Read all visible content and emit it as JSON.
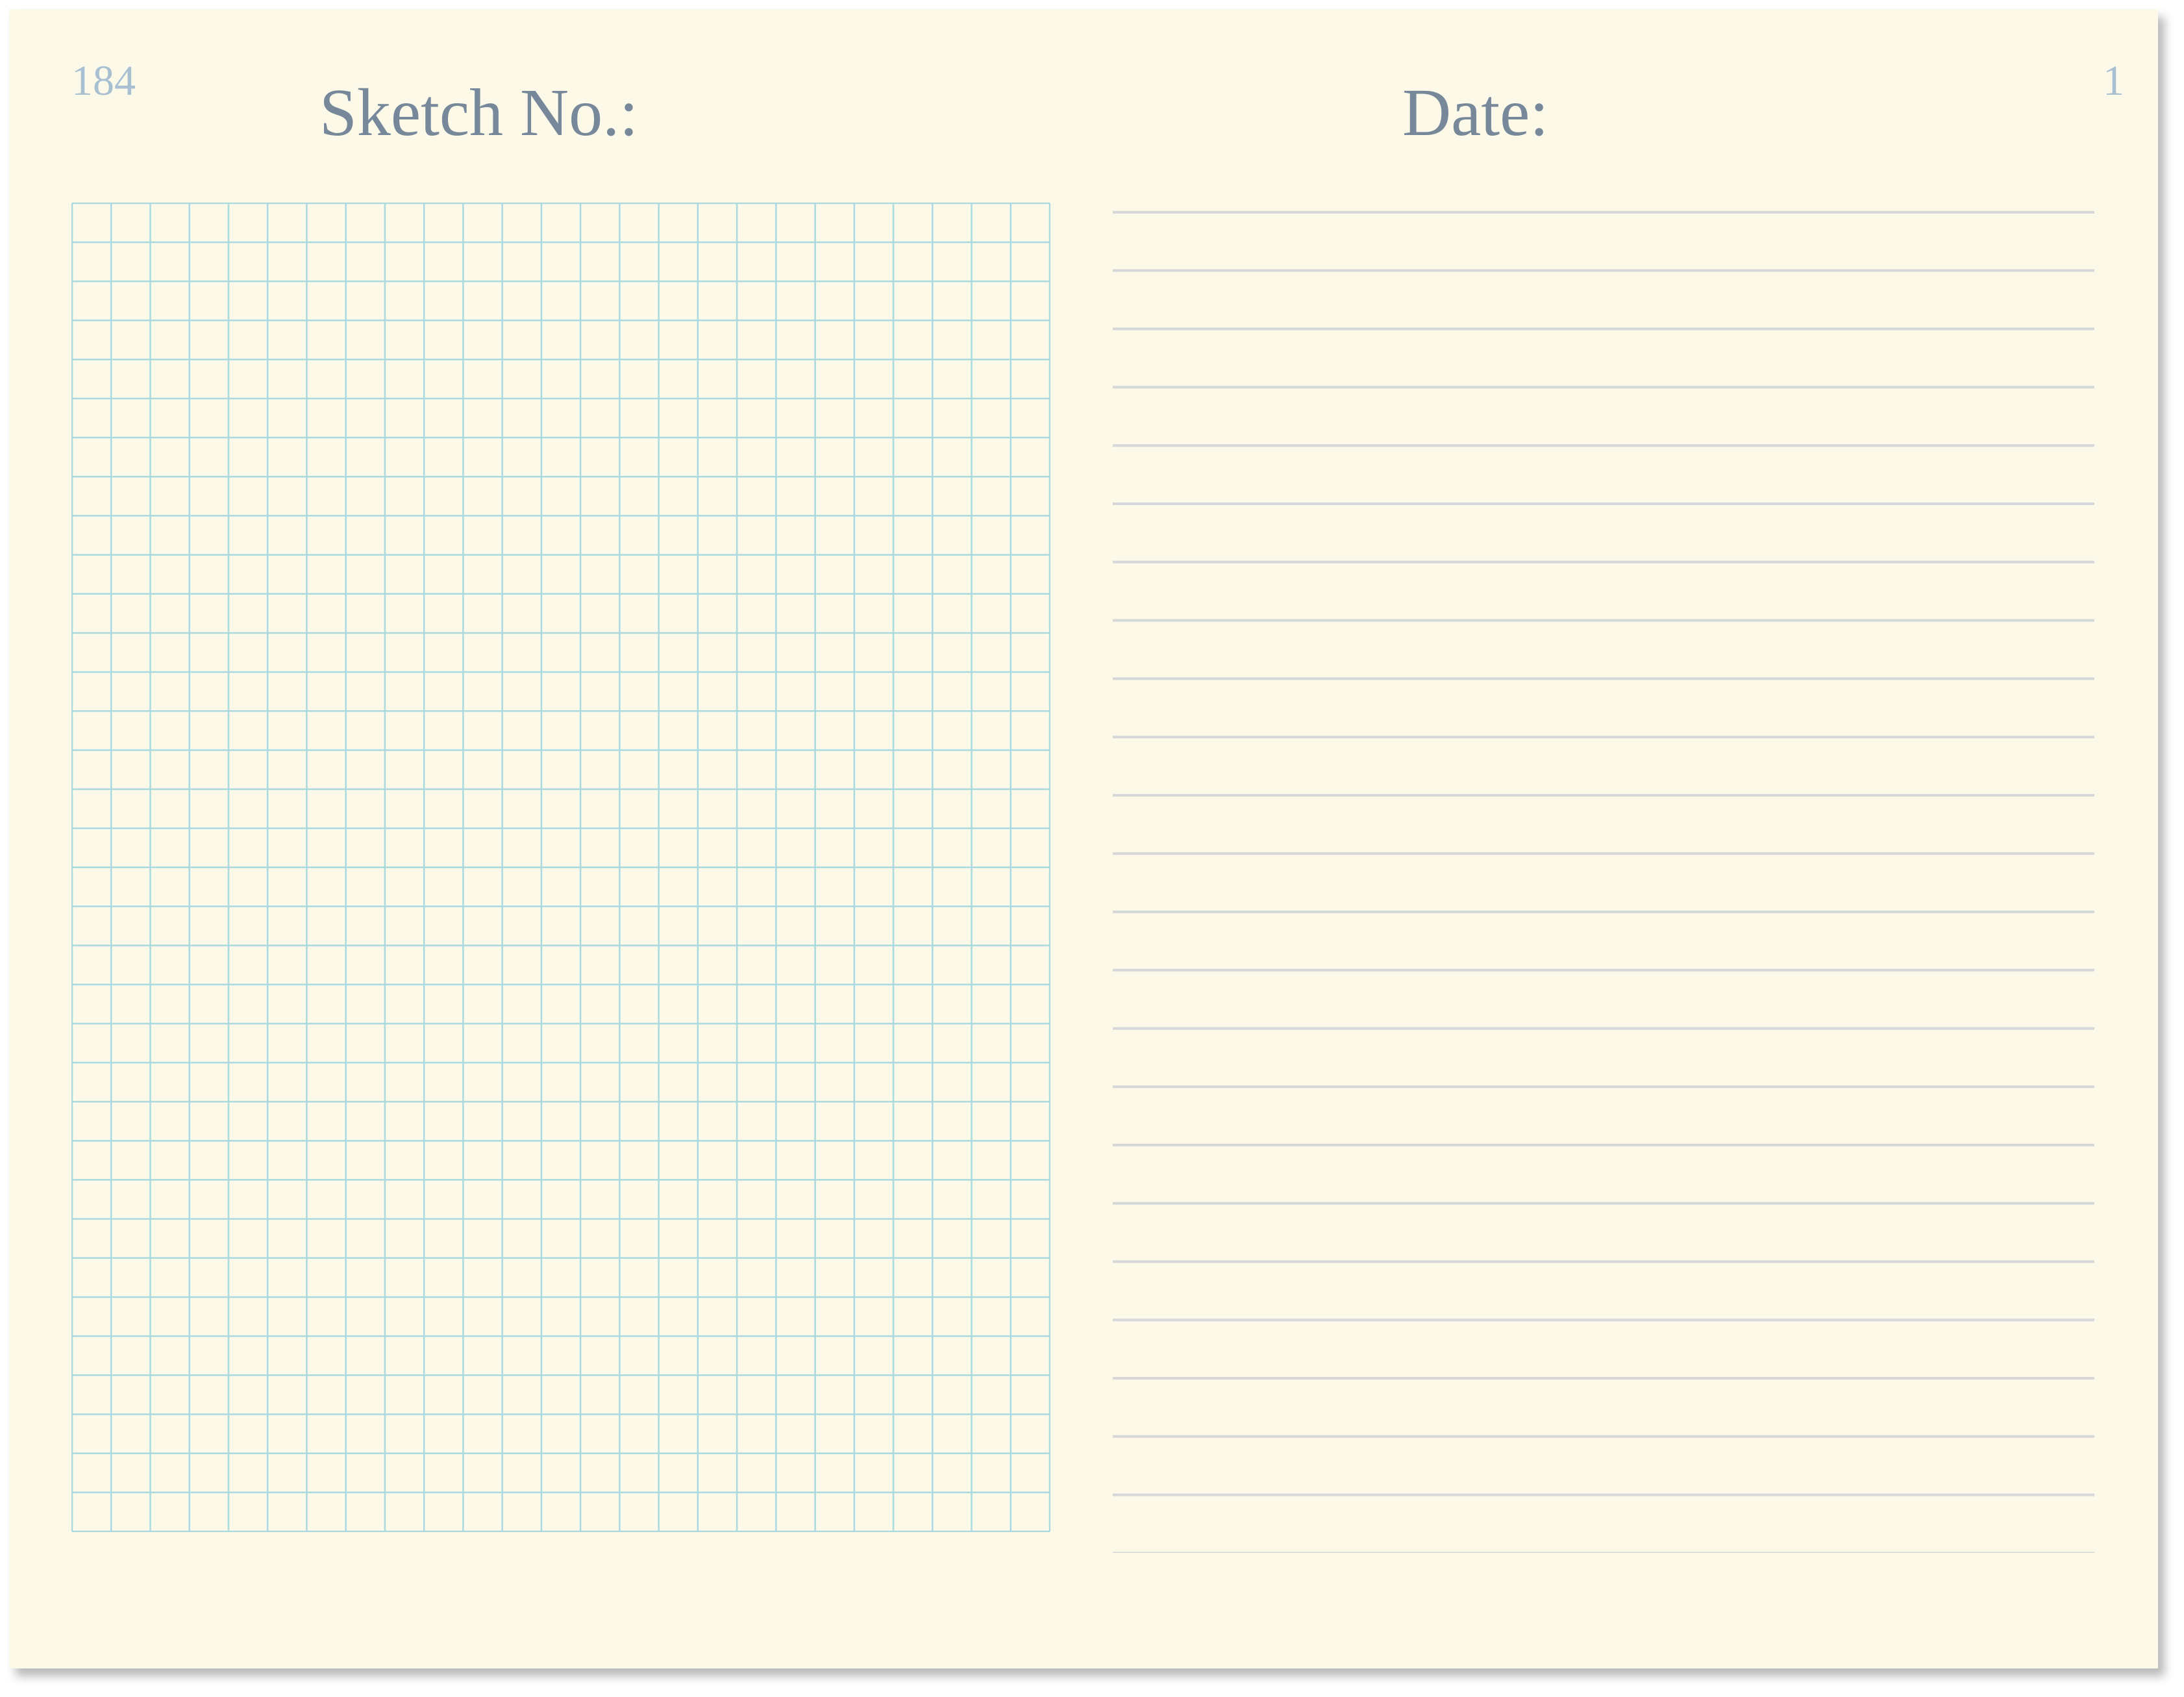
{
  "page": {
    "left_page_number": "184",
    "right_page_number": "1",
    "sketch_label": "Sketch No.:",
    "date_label": "Date:"
  },
  "grid": {
    "columns": 25,
    "rows": 34,
    "line_color": "#aad9e0"
  },
  "lined_section": {
    "line_count": 24,
    "line_color": "#d5d7d8"
  },
  "colors": {
    "paper": "#fcf9e8",
    "heading": "#76889a",
    "page_number": "#a9bfd2"
  }
}
